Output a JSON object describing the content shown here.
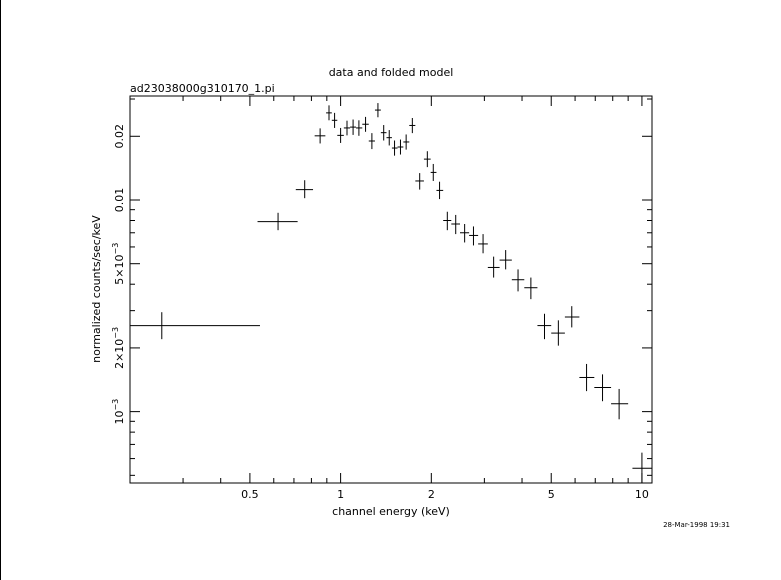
{
  "chart_data": {
    "type": "scatter",
    "title": "data and folded model",
    "subtitle": "ad23038000g310170_1.pi",
    "xlabel": "channel energy (keV)",
    "ylabel": "normalized counts/sec/keV",
    "xscale": "log",
    "yscale": "log",
    "xlim": [
      0.2,
      10.8
    ],
    "ylim": [
      0.00046,
      0.031
    ],
    "grid": false,
    "x_ticks": [
      {
        "value": 0.5,
        "label": "0.5"
      },
      {
        "value": 1,
        "label": "1"
      },
      {
        "value": 2,
        "label": "2"
      },
      {
        "value": 5,
        "label": "5"
      },
      {
        "value": 10,
        "label": "10"
      }
    ],
    "y_ticks": [
      {
        "value": 0.001,
        "base": "10",
        "exp": "−3",
        "mant": ""
      },
      {
        "value": 0.002,
        "base": "10",
        "exp": "−3",
        "mant": "2×"
      },
      {
        "value": 0.005,
        "base": "10",
        "exp": "−3",
        "mant": "5×"
      },
      {
        "value": 0.01,
        "label": "0.01"
      },
      {
        "value": 0.02,
        "label": "0.02"
      }
    ],
    "points": [
      {
        "x": 0.255,
        "xlo": 0.2,
        "xhi": 0.54,
        "y": 0.00255,
        "ylo": 0.0022,
        "yhi": 0.00295
      },
      {
        "x": 0.62,
        "xlo": 0.53,
        "xhi": 0.72,
        "y": 0.0079,
        "ylo": 0.0072,
        "yhi": 0.0087
      },
      {
        "x": 0.76,
        "xlo": 0.71,
        "xhi": 0.81,
        "y": 0.0112,
        "ylo": 0.0102,
        "yhi": 0.0124
      },
      {
        "x": 0.855,
        "xlo": 0.82,
        "xhi": 0.89,
        "y": 0.0201,
        "ylo": 0.0185,
        "yhi": 0.0218
      },
      {
        "x": 0.915,
        "xlo": 0.895,
        "xhi": 0.935,
        "y": 0.0258,
        "ylo": 0.0238,
        "yhi": 0.028
      },
      {
        "x": 0.955,
        "xlo": 0.935,
        "xhi": 0.975,
        "y": 0.0238,
        "ylo": 0.0219,
        "yhi": 0.0258
      },
      {
        "x": 1.0,
        "xlo": 0.975,
        "xhi": 1.025,
        "y": 0.0202,
        "ylo": 0.0186,
        "yhi": 0.0219
      },
      {
        "x": 1.05,
        "xlo": 1.025,
        "xhi": 1.075,
        "y": 0.0219,
        "ylo": 0.0202,
        "yhi": 0.0237
      },
      {
        "x": 1.1,
        "xlo": 1.075,
        "xhi": 1.125,
        "y": 0.0221,
        "ylo": 0.0203,
        "yhi": 0.024
      },
      {
        "x": 1.15,
        "xlo": 1.125,
        "xhi": 1.18,
        "y": 0.0219,
        "ylo": 0.0201,
        "yhi": 0.0238
      },
      {
        "x": 1.21,
        "xlo": 1.18,
        "xhi": 1.24,
        "y": 0.0228,
        "ylo": 0.021,
        "yhi": 0.0247
      },
      {
        "x": 1.27,
        "xlo": 1.24,
        "xhi": 1.3,
        "y": 0.019,
        "ylo": 0.0174,
        "yhi": 0.0207
      },
      {
        "x": 1.33,
        "xlo": 1.3,
        "xhi": 1.36,
        "y": 0.0266,
        "ylo": 0.0246,
        "yhi": 0.0287
      },
      {
        "x": 1.39,
        "xlo": 1.36,
        "xhi": 1.42,
        "y": 0.0208,
        "ylo": 0.0191,
        "yhi": 0.0226
      },
      {
        "x": 1.45,
        "xlo": 1.42,
        "xhi": 1.48,
        "y": 0.0197,
        "ylo": 0.0181,
        "yhi": 0.0214
      },
      {
        "x": 1.51,
        "xlo": 1.48,
        "xhi": 1.545,
        "y": 0.0176,
        "ylo": 0.0162,
        "yhi": 0.0191
      },
      {
        "x": 1.58,
        "xlo": 1.545,
        "xhi": 1.615,
        "y": 0.0178,
        "ylo": 0.0164,
        "yhi": 0.0193
      },
      {
        "x": 1.65,
        "xlo": 1.615,
        "xhi": 1.69,
        "y": 0.0188,
        "ylo": 0.0173,
        "yhi": 0.0204
      },
      {
        "x": 1.73,
        "xlo": 1.69,
        "xhi": 1.77,
        "y": 0.0225,
        "ylo": 0.0207,
        "yhi": 0.0244
      },
      {
        "x": 1.83,
        "xlo": 1.77,
        "xhi": 1.89,
        "y": 0.0123,
        "ylo": 0.0112,
        "yhi": 0.0134
      },
      {
        "x": 1.94,
        "xlo": 1.89,
        "xhi": 1.99,
        "y": 0.0156,
        "ylo": 0.0143,
        "yhi": 0.017
      },
      {
        "x": 2.03,
        "xlo": 1.99,
        "xhi": 2.08,
        "y": 0.0135,
        "ylo": 0.0123,
        "yhi": 0.0148
      },
      {
        "x": 2.13,
        "xlo": 2.08,
        "xhi": 2.19,
        "y": 0.0111,
        "ylo": 0.0101,
        "yhi": 0.0122
      },
      {
        "x": 2.26,
        "xlo": 2.19,
        "xhi": 2.33,
        "y": 0.008,
        "ylo": 0.0072,
        "yhi": 0.0088
      },
      {
        "x": 2.41,
        "xlo": 2.33,
        "xhi": 2.49,
        "y": 0.0077,
        "ylo": 0.0069,
        "yhi": 0.0085
      },
      {
        "x": 2.58,
        "xlo": 2.49,
        "xhi": 2.67,
        "y": 0.007,
        "ylo": 0.0063,
        "yhi": 0.0077
      },
      {
        "x": 2.76,
        "xlo": 2.67,
        "xhi": 2.86,
        "y": 0.0068,
        "ylo": 0.0061,
        "yhi": 0.0075
      },
      {
        "x": 2.97,
        "xlo": 2.86,
        "xhi": 3.08,
        "y": 0.0062,
        "ylo": 0.0056,
        "yhi": 0.0069
      },
      {
        "x": 3.22,
        "xlo": 3.08,
        "xhi": 3.37,
        "y": 0.0048,
        "ylo": 0.0043,
        "yhi": 0.0054
      },
      {
        "x": 3.53,
        "xlo": 3.37,
        "xhi": 3.7,
        "y": 0.0052,
        "ylo": 0.0047,
        "yhi": 0.0058
      },
      {
        "x": 3.88,
        "xlo": 3.7,
        "xhi": 4.07,
        "y": 0.0042,
        "ylo": 0.0037,
        "yhi": 0.0047
      },
      {
        "x": 4.28,
        "xlo": 4.07,
        "xhi": 4.5,
        "y": 0.00385,
        "ylo": 0.0034,
        "yhi": 0.0043
      },
      {
        "x": 4.75,
        "xlo": 4.5,
        "xhi": 5.0,
        "y": 0.00255,
        "ylo": 0.0022,
        "yhi": 0.0029
      },
      {
        "x": 5.28,
        "xlo": 5.0,
        "xhi": 5.55,
        "y": 0.00235,
        "ylo": 0.00205,
        "yhi": 0.0027
      },
      {
        "x": 5.85,
        "xlo": 5.55,
        "xhi": 6.2,
        "y": 0.0028,
        "ylo": 0.0025,
        "yhi": 0.00315
      },
      {
        "x": 6.55,
        "xlo": 6.2,
        "xhi": 6.95,
        "y": 0.00145,
        "ylo": 0.00125,
        "yhi": 0.00168
      },
      {
        "x": 7.4,
        "xlo": 6.95,
        "xhi": 7.9,
        "y": 0.0013,
        "ylo": 0.00112,
        "yhi": 0.0015
      },
      {
        "x": 8.4,
        "xlo": 7.9,
        "xhi": 9.0,
        "y": 0.00109,
        "ylo": 0.00092,
        "yhi": 0.00128
      },
      {
        "x": 10.0,
        "xlo": 9.3,
        "xhi": 10.8,
        "y": 0.00054,
        "ylo": 0.00046,
        "yhi": 0.00064
      }
    ],
    "timestamp": "28-Mar-1998 19:31"
  }
}
